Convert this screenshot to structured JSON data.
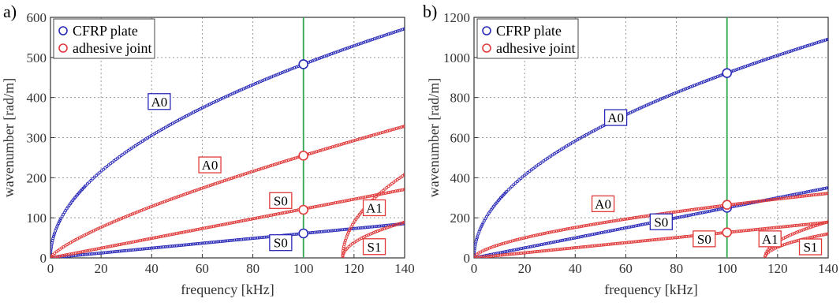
{
  "chart_data": [
    {
      "panel": "a)",
      "type": "scatter",
      "xlabel": "frequency [kHz]",
      "ylabel": "wavenumber [rad/m]",
      "xlim": [
        0,
        140
      ],
      "ylim": [
        0,
        600
      ],
      "xticks": [
        0,
        20,
        40,
        60,
        80,
        100,
        120,
        140
      ],
      "yticks": [
        0,
        100,
        200,
        300,
        400,
        500,
        600
      ],
      "grid": true,
      "legend_position": "top-left",
      "legend": [
        {
          "label": "CFRP plate",
          "color": "#2a2ab8"
        },
        {
          "label": "adhesive joint",
          "color": "#e03a3a"
        }
      ],
      "vline": {
        "x": 100,
        "color": "#2fa84f"
      },
      "series": [
        {
          "group": "CFRP plate",
          "mode": "A0",
          "color": "#2a2ab8",
          "x_range": [
            0,
            140
          ],
          "x0": 0,
          "fn": "sqrt",
          "k": 48.3
        },
        {
          "group": "CFRP plate",
          "mode": "S0",
          "color": "#2a2ab8",
          "x_range": [
            0,
            140
          ],
          "x0": 0,
          "fn": "linear",
          "k": 0.61
        },
        {
          "group": "adhesive joint",
          "mode": "A0",
          "color": "#e03a3a",
          "x_range": [
            0,
            140
          ],
          "x0": 0,
          "fn": "pow",
          "p": 0.75,
          "k": 8.07
        },
        {
          "group": "adhesive joint",
          "mode": "S0",
          "color": "#e03a3a",
          "x_range": [
            0,
            140
          ],
          "x0": 0,
          "fn": "linear",
          "k": 1.22
        },
        {
          "group": "adhesive joint",
          "mode": "A1 (upper)",
          "color": "#e03a3a",
          "x_range": [
            115.5,
            140
          ],
          "x0": 115.5,
          "fn": "sqrt",
          "k": 42
        },
        {
          "group": "adhesive joint",
          "mode": "A1 (lower)",
          "color": "#e03a3a",
          "x_range": [
            115.5,
            140
          ],
          "x0": 115.5,
          "fn": "sqrt",
          "k": 18
        }
      ],
      "markers": [
        {
          "x": 100,
          "y": 483,
          "color": "#2a2ab8"
        },
        {
          "x": 100,
          "y": 61,
          "color": "#2a2ab8"
        },
        {
          "x": 100,
          "y": 255,
          "color": "#e03a3a"
        },
        {
          "x": 100,
          "y": 120,
          "color": "#e03a3a"
        }
      ],
      "labels": [
        {
          "text": "A0",
          "x": 43,
          "y": 390,
          "color": "#2a2ab8"
        },
        {
          "text": "A0",
          "x": 63,
          "y": 232,
          "color": "#e03a3a"
        },
        {
          "text": "S0",
          "x": 91,
          "y": 143,
          "color": "#e03a3a"
        },
        {
          "text": "S0",
          "x": 91,
          "y": 38,
          "color": "#2a2ab8"
        },
        {
          "text": "A1",
          "x": 128,
          "y": 125,
          "color": "#e03a3a"
        },
        {
          "text": "S1",
          "x": 128,
          "y": 28,
          "color": "#e03a3a"
        }
      ]
    },
    {
      "panel": "b)",
      "type": "scatter",
      "xlabel": "frequency [kHz]",
      "ylabel": "wavenumber [rad/m]",
      "xlim": [
        0,
        140
      ],
      "ylim": [
        0,
        1200
      ],
      "xticks": [
        0,
        20,
        40,
        60,
        80,
        100,
        120,
        140
      ],
      "yticks": [
        0,
        200,
        400,
        600,
        800,
        1000,
        1200
      ],
      "grid": true,
      "legend_position": "top-left",
      "legend": [
        {
          "label": "CFRP plate",
          "color": "#2a2ab8"
        },
        {
          "label": "adhesive joint",
          "color": "#e03a3a"
        }
      ],
      "vline": {
        "x": 100,
        "color": "#2fa84f"
      },
      "series": [
        {
          "group": "CFRP plate",
          "mode": "A0",
          "color": "#2a2ab8",
          "x_range": [
            0,
            140
          ],
          "x0": 0,
          "fn": "sqrt",
          "k": 92.2
        },
        {
          "group": "CFRP plate",
          "mode": "S0",
          "color": "#2a2ab8",
          "x_range": [
            0,
            140
          ],
          "x0": 0,
          "fn": "linear",
          "k": 2.5
        },
        {
          "group": "adhesive joint",
          "mode": "A0",
          "color": "#e03a3a",
          "x_range": [
            0,
            140
          ],
          "x0": 0,
          "fn": "pow",
          "p": 0.6,
          "k": 16.6
        },
        {
          "group": "adhesive joint",
          "mode": "S0",
          "color": "#e03a3a",
          "x_range": [
            0,
            140
          ],
          "x0": 0,
          "fn": "linear",
          "k": 1.27
        },
        {
          "group": "adhesive joint",
          "mode": "A1 (upper)",
          "color": "#e03a3a",
          "x_range": [
            115,
            140
          ],
          "x0": 115,
          "fn": "sqrt",
          "k": 36
        },
        {
          "group": "adhesive joint",
          "mode": "A1 (lower)",
          "color": "#e03a3a",
          "x_range": [
            115,
            140
          ],
          "x0": 115,
          "fn": "sqrt",
          "k": 24
        }
      ],
      "markers": [
        {
          "x": 100,
          "y": 922,
          "color": "#2a2ab8"
        },
        {
          "x": 100,
          "y": 250,
          "color": "#2a2ab8"
        },
        {
          "x": 100,
          "y": 265,
          "color": "#e03a3a"
        },
        {
          "x": 100,
          "y": 127,
          "color": "#e03a3a"
        }
      ],
      "labels": [
        {
          "text": "A0",
          "x": 56,
          "y": 700,
          "color": "#2a2ab8"
        },
        {
          "text": "A0",
          "x": 51,
          "y": 270,
          "color": "#e03a3a"
        },
        {
          "text": "S0",
          "x": 74,
          "y": 180,
          "color": "#2a2ab8"
        },
        {
          "text": "S0",
          "x": 91,
          "y": 95,
          "color": "#e03a3a"
        },
        {
          "text": "A1",
          "x": 117,
          "y": 95,
          "color": "#e03a3a"
        },
        {
          "text": "S1",
          "x": 133,
          "y": 55,
          "color": "#e03a3a"
        }
      ]
    }
  ]
}
